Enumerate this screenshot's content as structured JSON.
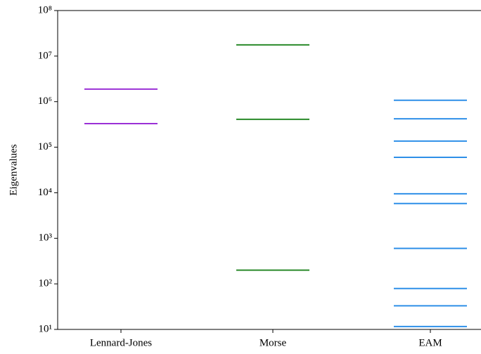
{
  "chart_data": {
    "type": "eventplot",
    "ylabel": "Eigenvalues",
    "categories": [
      "Lennard-Jones",
      "Morse",
      "EAM"
    ],
    "colors": [
      "#9b30d6",
      "#2a8a2a",
      "#2e8fe8"
    ],
    "values": [
      [
        1880000,
        330000
      ],
      [
        17600000,
        410000,
        200
      ],
      [
        1070000,
        420000,
        136000,
        60000,
        9500,
        5800,
        600,
        79,
        33,
        11.6
      ]
    ],
    "log_scale": true,
    "ylim": [
      10,
      100000000
    ],
    "yticks": [
      {
        "value": 10,
        "label": "10¹"
      },
      {
        "value": 100,
        "label": "10²"
      },
      {
        "value": 1000,
        "label": "10³"
      },
      {
        "value": 10000,
        "label": "10⁴"
      },
      {
        "value": 100000,
        "label": "10⁵"
      },
      {
        "value": 1000000,
        "label": "10⁶"
      },
      {
        "value": 10000000,
        "label": "10⁷"
      },
      {
        "value": 100000000,
        "label": "10⁸"
      }
    ]
  }
}
